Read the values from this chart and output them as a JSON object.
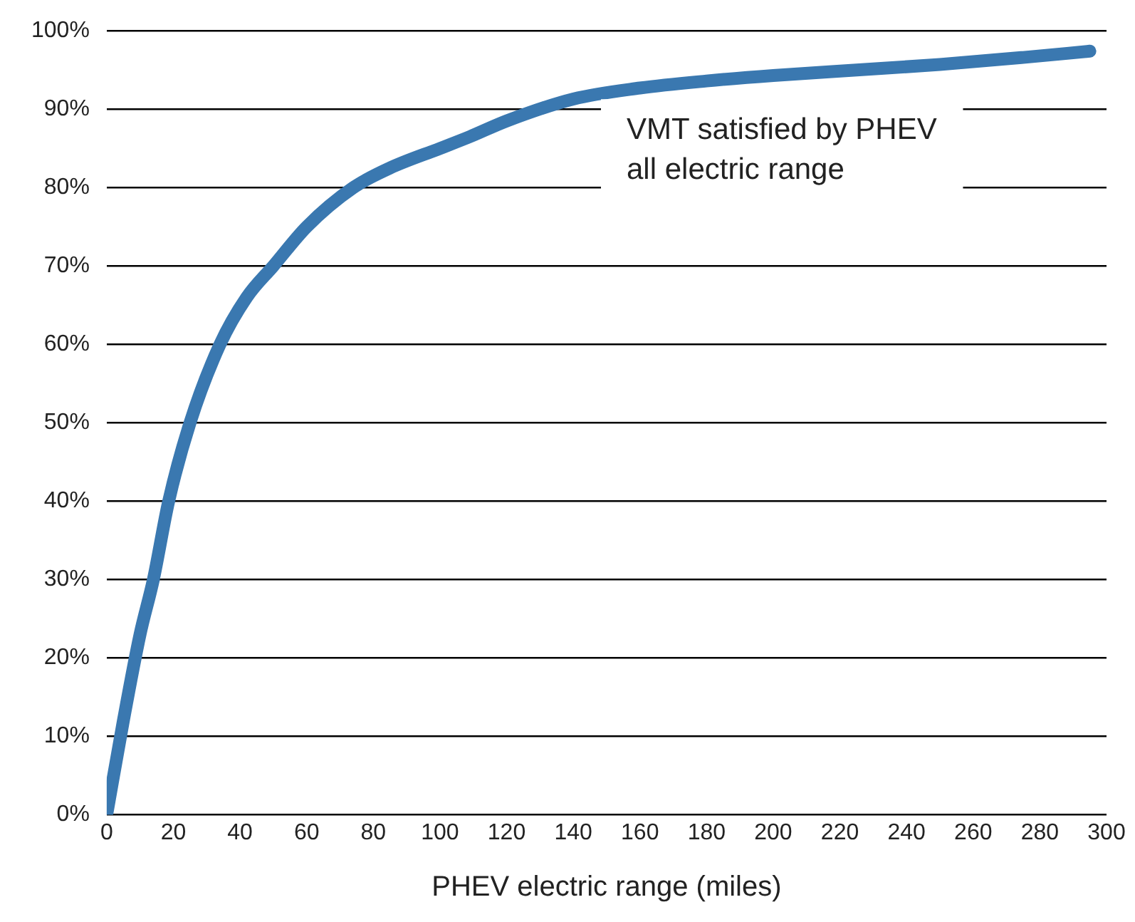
{
  "chart_data": {
    "type": "line",
    "xlabel": "PHEV electric range (miles)",
    "x": [
      0,
      5,
      10,
      14,
      18.6,
      25,
      34,
      42,
      50,
      60,
      74,
      85,
      100,
      109,
      120,
      140,
      160,
      180,
      200,
      225,
      250,
      275,
      295
    ],
    "series": [
      {
        "color": "#3a78b0",
        "values": [
          0,
          12,
          23,
          30,
          40,
          50,
          60,
          66,
          70,
          75,
          80,
          82.5,
          85,
          86.5,
          88.5,
          91.3,
          92.7,
          93.6,
          94.3,
          95,
          95.7,
          96.6,
          97.4
        ]
      }
    ],
    "xlim": [
      0,
      300
    ],
    "xticks": [
      0,
      20,
      40,
      60,
      80,
      100,
      120,
      140,
      160,
      180,
      200,
      220,
      240,
      260,
      280,
      300
    ],
    "ylim": [
      0,
      100
    ],
    "yticks": [
      {
        "value": 0,
        "label": "0%"
      },
      {
        "value": 10,
        "label": "10%"
      },
      {
        "value": 20,
        "label": "20%"
      },
      {
        "value": 30,
        "label": "30%"
      },
      {
        "value": 40,
        "label": "40%"
      },
      {
        "value": 50,
        "label": "50%"
      },
      {
        "value": 60,
        "label": "60%"
      },
      {
        "value": 70,
        "label": "70%"
      },
      {
        "value": 80,
        "label": "80%"
      },
      {
        "value": 90,
        "label": "90%"
      },
      {
        "value": 100,
        "label": "100%"
      }
    ],
    "grid": "y",
    "legend": false,
    "marker": "none",
    "line_style": "solid",
    "annotations": [
      "VMT satisfied by PHEV\nall electric range"
    ]
  }
}
